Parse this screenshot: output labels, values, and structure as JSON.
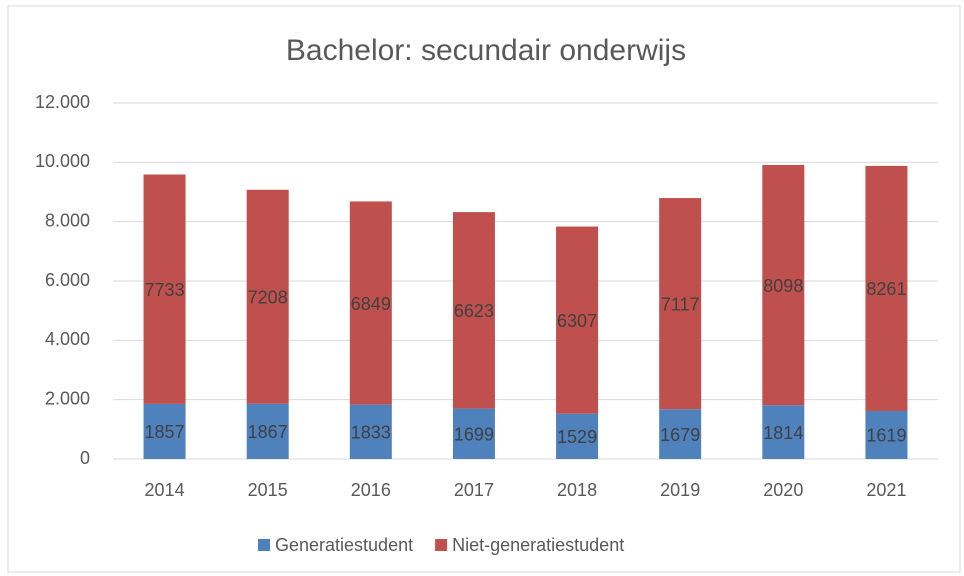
{
  "chart_data": {
    "type": "stacked_bar",
    "title": "Bachelor: secundair onderwijs",
    "categories": [
      "2014",
      "2015",
      "2016",
      "2017",
      "2018",
      "2019",
      "2020",
      "2021"
    ],
    "series": [
      {
        "name": "Generatiestudent",
        "color": "#4f81bd",
        "values": [
          1857,
          1867,
          1833,
          1699,
          1529,
          1679,
          1814,
          1619
        ]
      },
      {
        "name": "Niet-generatiestudent",
        "color": "#c0504d",
        "values": [
          7733,
          7208,
          6849,
          6623,
          6307,
          7117,
          8098,
          8261
        ]
      }
    ],
    "ylim": [
      0,
      12000
    ],
    "yticks": [
      0,
      {
        "value": 2000,
        "label": "2.000"
      },
      {
        "value": 4000,
        "label": "4.000"
      },
      {
        "value": 6000,
        "label": "6.000"
      },
      {
        "value": 8000,
        "label": "8.000"
      },
      {
        "value": 10000,
        "label": "10.000"
      },
      {
        "value": 12000,
        "label": "12.000"
      }
    ],
    "grid": true,
    "legend": "bottom"
  }
}
